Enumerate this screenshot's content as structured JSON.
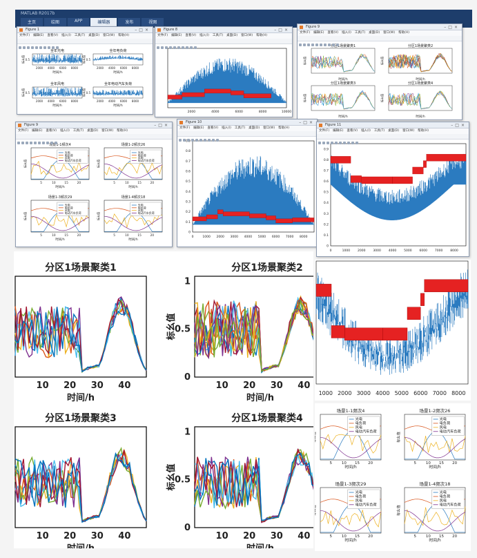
{
  "app": {
    "title": "MATLAB R2017b",
    "tabs": [
      "主页",
      "绘图",
      "APP",
      "编辑器",
      "发布",
      "视图"
    ],
    "active_tab": 3
  },
  "figures": {
    "fig_a": {
      "title": "Figure 1"
    },
    "fig_b": {
      "title": "Figure 8"
    },
    "fig_c": {
      "title": "Figure 9"
    },
    "fig_d": {
      "title": "Figure 9"
    },
    "fig_e": {
      "title": "Figure 10"
    },
    "fig_f": {
      "title": "Figure 11"
    }
  },
  "menu": [
    "文件(F)",
    "编辑(E)",
    "查看(V)",
    "插入(I)",
    "工具(T)",
    "桌面(D)",
    "窗口(W)",
    "帮助(H)"
  ],
  "year_overview": {
    "titles": [
      "全年光电",
      "全年电负荷",
      "全年风电",
      "全年电动汽车负荷"
    ],
    "xticks": [
      "2000",
      "4000",
      "6000",
      "8000"
    ],
    "xlabel": "时间/h",
    "ylabel": "标幺值",
    "ytick": "0.5"
  },
  "partition_clusters": {
    "titles": [
      "分区1场景聚类1",
      "分区1场景聚类2",
      "分区1场景聚类3",
      "分区1场景聚类4"
    ],
    "xlabel": "时间/h",
    "ylabel": "标幺值"
  },
  "scenarios": {
    "titles": [
      "场景1-1频次4",
      "场景1-2频次26",
      "场景1-3频次29",
      "场景1-4频次18"
    ],
    "legend": [
      "光电",
      "电负荷",
      "风电",
      "电动汽车负荷"
    ],
    "xlabel": "时间/h",
    "ylabel": "标幺值"
  },
  "chart_data": [
    {
      "id": "fig8-year-load",
      "type": "area",
      "x_range": [
        0,
        10000
      ],
      "xticks": [
        2000,
        4000,
        6000,
        8000,
        10000
      ],
      "series": [
        {
          "values": "seasonal load envelope, peak near hour 4000"
        }
      ],
      "segments_color": "#e52222"
    },
    {
      "id": "fig10-year-load",
      "type": "area",
      "xticks": [
        0,
        1000,
        2000,
        3000,
        4000,
        5000,
        6000,
        7000,
        8000
      ],
      "yticks": [
        0,
        0.1,
        0.2,
        0.3,
        0.4,
        0.5,
        0.6,
        0.7,
        0.8,
        0.9
      ],
      "ylim": [
        0,
        0.9
      ],
      "segments": [
        {
          "x0": 0,
          "x1": 1000,
          "y": 0.13
        },
        {
          "x0": 1000,
          "x1": 1800,
          "y": 0.15
        },
        {
          "x0": 1800,
          "x1": 2200,
          "y": 0.2
        },
        {
          "x0": 2200,
          "x1": 4100,
          "y": 0.18
        },
        {
          "x0": 4100,
          "x1": 5300,
          "y": 0.16
        },
        {
          "x0": 5300,
          "x1": 6000,
          "y": 0.14
        },
        {
          "x0": 6000,
          "x1": 7200,
          "y": 0.11
        },
        {
          "x0": 7200,
          "x1": 8760,
          "y": 0.12
        }
      ]
    },
    {
      "id": "fig11-year-load",
      "type": "line",
      "xticks": [
        0,
        1000,
        2000,
        3000,
        4000,
        5000,
        6000,
        7000,
        8000
      ],
      "yticks": [
        0,
        0.1,
        0.2,
        0.3,
        0.4,
        0.5,
        0.6,
        0.7,
        0.8,
        0.9
      ],
      "ylim": [
        0,
        0.95
      ],
      "segments": [
        {
          "x0": 0,
          "x1": 1300,
          "y": 0.8
        },
        {
          "x0": 1300,
          "x1": 2000,
          "y": 0.62
        },
        {
          "x0": 2000,
          "x1": 4000,
          "y": 0.61
        },
        {
          "x0": 4000,
          "x1": 5300,
          "y": 0.61
        },
        {
          "x0": 5300,
          "x1": 6000,
          "y": 0.7
        },
        {
          "x0": 6000,
          "x1": 6200,
          "y": 0.76
        },
        {
          "x0": 6200,
          "x1": 8760,
          "y": 0.82
        }
      ]
    },
    {
      "id": "partition-cluster-large",
      "type": "line",
      "x_range": [
        0,
        48
      ],
      "xticks": [
        10,
        20,
        30,
        40
      ],
      "yticks": [
        0,
        0.5,
        1
      ],
      "ylim": [
        0,
        1
      ]
    },
    {
      "id": "fig11-zoom",
      "type": "line",
      "xticks": [
        1000,
        2000,
        3000,
        4000,
        5000,
        6000,
        7000,
        8000
      ],
      "x_range": [
        500,
        8500
      ]
    },
    {
      "id": "scenario-small",
      "type": "line",
      "xticks": [
        5,
        10,
        15,
        20
      ],
      "x_range": [
        1,
        24
      ]
    }
  ]
}
